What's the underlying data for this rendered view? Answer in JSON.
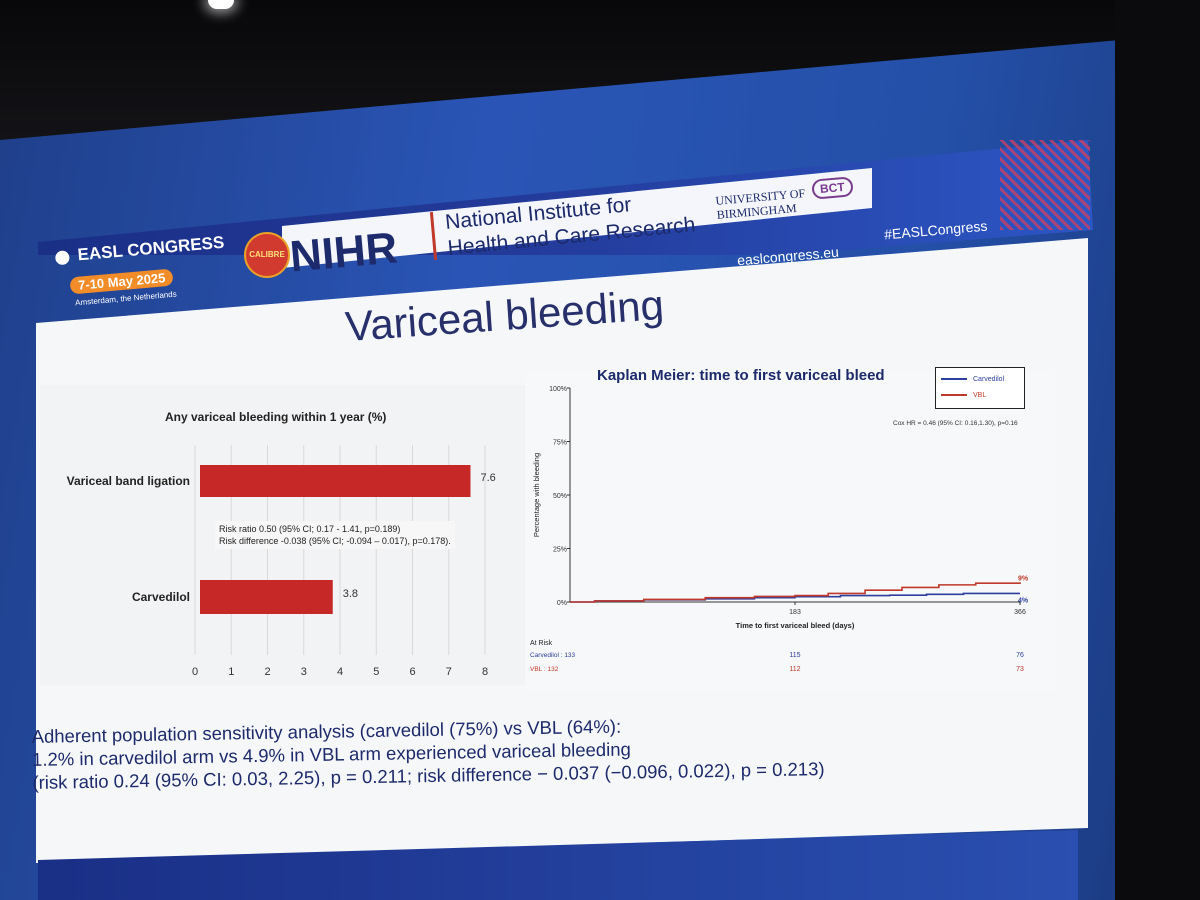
{
  "header": {
    "easl_name": "EASL CONGRESS",
    "easl_dates": "7-10 May 2025",
    "easl_location": "Amsterdam, the Netherlands",
    "calibre_logo": "CALIBRE",
    "nihr_logo": "NIHR",
    "nihr_line1": "National Institute for",
    "nihr_line2": "Health and Care Research",
    "uob_line1": "UNIVERSITY OF",
    "uob_line2": "BIRMINGHAM",
    "bct_logo": "BCT",
    "website": "easlcongress.eu",
    "hashtag": "#EASLCongress"
  },
  "slide_title": "Variceal bleeding",
  "chart_data": [
    {
      "type": "bar",
      "title": "Any variceal bleeding within 1 year (%)",
      "categories": [
        "Variceal band ligation",
        "Carvedilol"
      ],
      "values": [
        7.6,
        3.8
      ],
      "value_labels": [
        "7.6",
        "3.8"
      ],
      "xlim": [
        0,
        8
      ],
      "xticks": [
        "0",
        "1",
        "2",
        "3",
        "4",
        "5",
        "6",
        "7",
        "8"
      ],
      "grid": true,
      "bar_color": "#c62828",
      "annotation_line1": "Risk ratio 0.50 (95% CI; 0.17 - 1.41, p=0.189)",
      "annotation_line2": "Risk difference -0.038 (95% CI; -0.094 – 0.017), p=0.178)."
    },
    {
      "type": "line",
      "title": "Kaplan Meier: time to first variceal bleed",
      "xlabel": "Time to first variceal bleed (days)",
      "ylabel": "Percentage with bleeding",
      "xlim": [
        0,
        366
      ],
      "ylim": [
        0,
        100
      ],
      "xticks": [
        "183",
        "366"
      ],
      "yticks": [
        "0%",
        "25%",
        "50%",
        "75%",
        "100%"
      ],
      "legend_position": "top-right",
      "series": [
        {
          "name": "Carvedilol",
          "color": "#2e3f9e",
          "end_label": "4%",
          "x": [
            0,
            20,
            60,
            110,
            150,
            183,
            220,
            260,
            290,
            320,
            340,
            366
          ],
          "y": [
            0,
            0.5,
            1.0,
            1.5,
            2.0,
            2.5,
            3.0,
            3.2,
            3.6,
            4.0,
            4.0,
            4.0
          ]
        },
        {
          "name": "VBL",
          "color": "#c0392b",
          "end_label": "9%",
          "x": [
            0,
            20,
            60,
            110,
            150,
            183,
            210,
            240,
            270,
            300,
            330,
            366
          ],
          "y": [
            0,
            0.5,
            1.2,
            2.0,
            2.6,
            3.0,
            4.0,
            5.5,
            6.8,
            8.0,
            8.8,
            9.2
          ]
        }
      ],
      "hr_annotation": "Cox HR = 0.46 (95% CI: 0.16,1.30), p=0.16",
      "at_risk": {
        "label": "At Risk",
        "rows": [
          {
            "name": "Carvedilol : 133",
            "values": [
              "115",
              "76"
            ],
            "color": "#2e3f9e"
          },
          {
            "name": "VBL : 132",
            "values": [
              "112",
              "73"
            ],
            "color": "#c0392b"
          }
        ]
      }
    }
  ],
  "footer_text": {
    "line1": "Adherent population sensitivity analysis (carvedilol (75%) vs VBL (64%):",
    "line2": "1.2% in carvedilol arm vs 4.9% in VBL arm experienced variceal bleeding",
    "line3": "(risk ratio 0.24 (95% CI: 0.03, 2.25), p = 0.211; risk difference − 0.037 (−0.096, 0.022), p = 0.213)"
  }
}
